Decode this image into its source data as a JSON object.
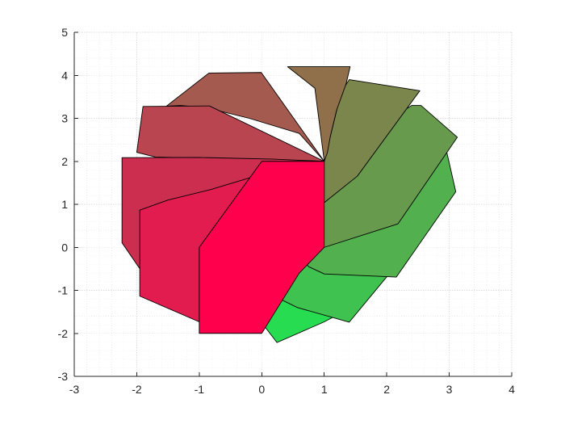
{
  "chart_data": {
    "type": "area",
    "title": "",
    "xlabel": "",
    "ylabel": "",
    "xlim": [
      -3,
      4
    ],
    "ylim": [
      -3,
      5
    ],
    "xticks": [
      "-3",
      "-2",
      "-1",
      "0",
      "1",
      "2",
      "3",
      "4"
    ],
    "yticks": [
      "-3",
      "-2",
      "-1",
      "0",
      "1",
      "2",
      "3",
      "4",
      "5"
    ],
    "grid": "on",
    "minor_grid": "on",
    "box": "off",
    "edge_color": "#000000",
    "polygons": [
      {
        "color": "#27dc51",
        "points": [
          [
            0.244,
            -2.214
          ],
          [
            1.0,
            -1.732
          ],
          [
            1.414,
            -1.414
          ],
          [
            1.0,
            0.0
          ],
          [
            1.0,
            2.0
          ],
          [
            0.5,
            -0.866
          ],
          [
            0.2,
            -1.2
          ],
          [
            -0.134,
            -1.5
          ]
        ]
      },
      {
        "color": "#3fc24f",
        "points": [
          [
            0.571,
            -1.4
          ],
          [
            1.4,
            -1.74
          ],
          [
            2.04,
            -0.616
          ],
          [
            1.0,
            0.0
          ],
          [
            1.0,
            2.0
          ],
          [
            0.3,
            -0.42
          ],
          [
            0.1,
            -0.9
          ],
          [
            0.15,
            -1.1
          ]
        ]
      },
      {
        "color": "#52b04e",
        "points": [
          [
            1.0,
            -0.618
          ],
          [
            2.154,
            -0.691
          ],
          [
            3.105,
            1.294
          ],
          [
            2.955,
            2.25
          ],
          [
            2.5,
            2.15
          ],
          [
            1.0,
            2.0
          ],
          [
            0.6,
            -0.15
          ],
          [
            0.75,
            -0.45
          ]
        ]
      },
      {
        "color": "#679a4d",
        "points": [
          [
            1.0,
            0.0
          ],
          [
            2.18,
            0.546
          ],
          [
            3.13,
            2.56
          ],
          [
            2.548,
            3.3
          ],
          [
            2.4,
            3.3
          ],
          [
            1.0,
            2.0
          ],
          [
            1.0,
            1.05
          ],
          [
            0.85,
            0.3
          ]
        ]
      },
      {
        "color": "#7b864c",
        "points": [
          [
            1.0,
            1.04
          ],
          [
            1.53,
            1.656
          ],
          [
            2.53,
            3.642
          ],
          [
            1.4,
            3.9
          ],
          [
            1.268,
            3.6
          ],
          [
            1.0,
            2.0
          ],
          [
            1.0,
            1.5
          ],
          [
            1.0,
            1.2
          ]
        ]
      },
      {
        "color": "#906f4b",
        "points": [
          [
            1.0,
            2.0
          ],
          [
            0.85,
            3.7
          ],
          [
            0.414,
            4.2
          ],
          [
            1.414,
            4.2
          ],
          [
            1.35,
            3.8
          ],
          [
            1.2,
            3.2
          ],
          [
            1.1,
            2.6
          ],
          [
            1.05,
            2.2
          ]
        ]
      },
      {
        "color": "#a55a4f",
        "points": [
          [
            -0.845,
            4.053
          ],
          [
            -0.008,
            4.066
          ],
          [
            1.0,
            2.0
          ],
          [
            0.6,
            2.65
          ],
          [
            -0.2,
            3.0
          ],
          [
            -0.9,
            3.25
          ],
          [
            -1.3,
            3.3
          ],
          [
            -1.525,
            3.283
          ]
        ]
      },
      {
        "color": "#b84550",
        "points": [
          [
            -1.9,
            3.276
          ],
          [
            -0.836,
            3.288
          ],
          [
            1.0,
            2.0
          ],
          [
            0.5,
            2.02
          ],
          [
            -0.4,
            2.06
          ],
          [
            -1.2,
            2.08
          ],
          [
            -1.7,
            2.1
          ],
          [
            -2.0,
            2.207
          ]
        ]
      },
      {
        "color": "#cb2e4e",
        "points": [
          [
            -2.236,
            0.106
          ],
          [
            -1.95,
            -0.5
          ],
          [
            -1.92,
            -0.65
          ],
          [
            -0.6,
            1.2
          ],
          [
            1.0,
            2.0
          ],
          [
            0.2,
            2.05
          ],
          [
            -1.0,
            2.09
          ],
          [
            -2.236,
            2.086
          ]
        ]
      },
      {
        "color": "#e21c4e",
        "points": [
          [
            -1.952,
            0.866
          ],
          [
            -1.952,
            -1.134
          ],
          [
            -1.0,
            -1.732
          ],
          [
            -0.38,
            0.28
          ],
          [
            1.0,
            2.0
          ],
          [
            0.0,
            1.7
          ],
          [
            -0.8,
            1.35
          ],
          [
            -1.5,
            1.1
          ]
        ]
      },
      {
        "color": "#ff004d",
        "points": [
          [
            -1.0,
            0.0
          ],
          [
            0.0,
            2.0
          ],
          [
            1.0,
            2.0
          ],
          [
            1.0,
            0.0
          ],
          [
            0.6,
            -0.6
          ],
          [
            0.0,
            -2.0
          ],
          [
            -1.0,
            -2.0
          ],
          [
            -1.0,
            -1.0
          ]
        ]
      }
    ]
  }
}
